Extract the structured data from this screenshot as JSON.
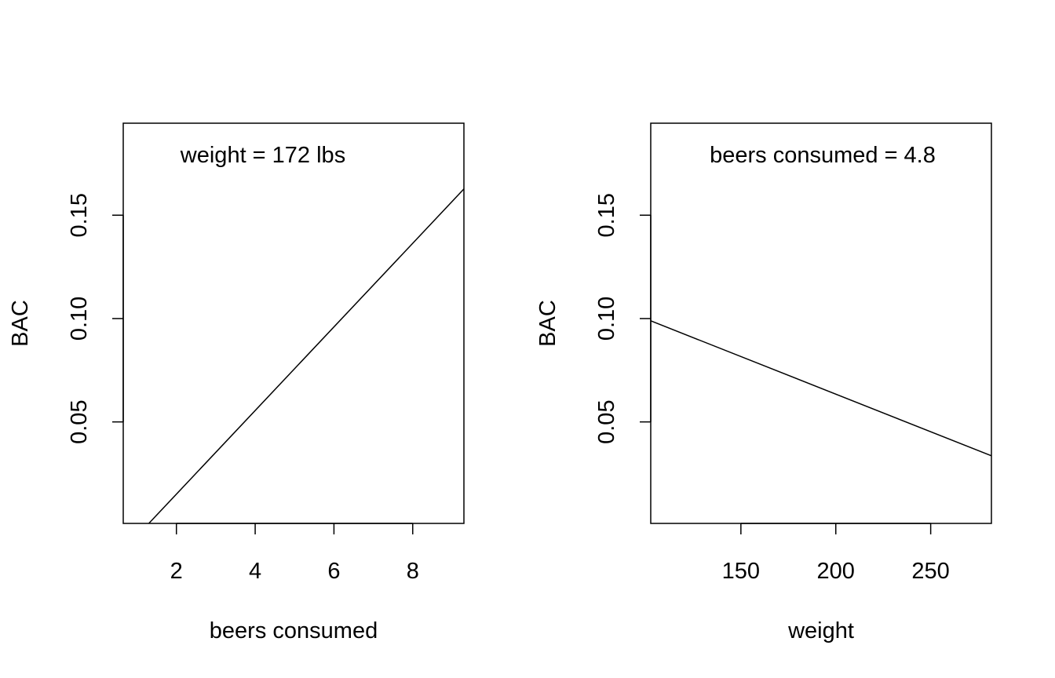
{
  "chart_data": [
    {
      "type": "line",
      "xlabel": "beers consumed",
      "ylabel": "BAC",
      "annotation": "weight =  172 lbs",
      "xlim": [
        0.65,
        9.3
      ],
      "ylim": [
        0.0009,
        0.1945
      ],
      "xticks": [
        2,
        4,
        6,
        8
      ],
      "yticks": [
        0.05,
        0.1,
        0.15
      ],
      "xtick_labels": [
        "2",
        "4",
        "6",
        "8"
      ],
      "ytick_labels": [
        "0.05",
        "0.10",
        "0.15"
      ],
      "grid": false,
      "series": [
        {
          "x": [
            1.3,
            9.3
          ],
          "y": [
            0.0009,
            0.1627
          ]
        }
      ]
    },
    {
      "type": "line",
      "xlabel": "weight",
      "ylabel": "BAC",
      "annotation": "beers consumed =  4.8",
      "xlim": [
        102.5,
        282
      ],
      "ylim": [
        0.0009,
        0.1945
      ],
      "xticks": [
        150,
        200,
        250
      ],
      "yticks": [
        0.05,
        0.1,
        0.15
      ],
      "xtick_labels": [
        "150",
        "200",
        "250"
      ],
      "ytick_labels": [
        "0.05",
        "0.10",
        "0.15"
      ],
      "grid": false,
      "series": [
        {
          "x": [
            102.5,
            282
          ],
          "y": [
            0.0989,
            0.0336
          ]
        }
      ]
    }
  ]
}
